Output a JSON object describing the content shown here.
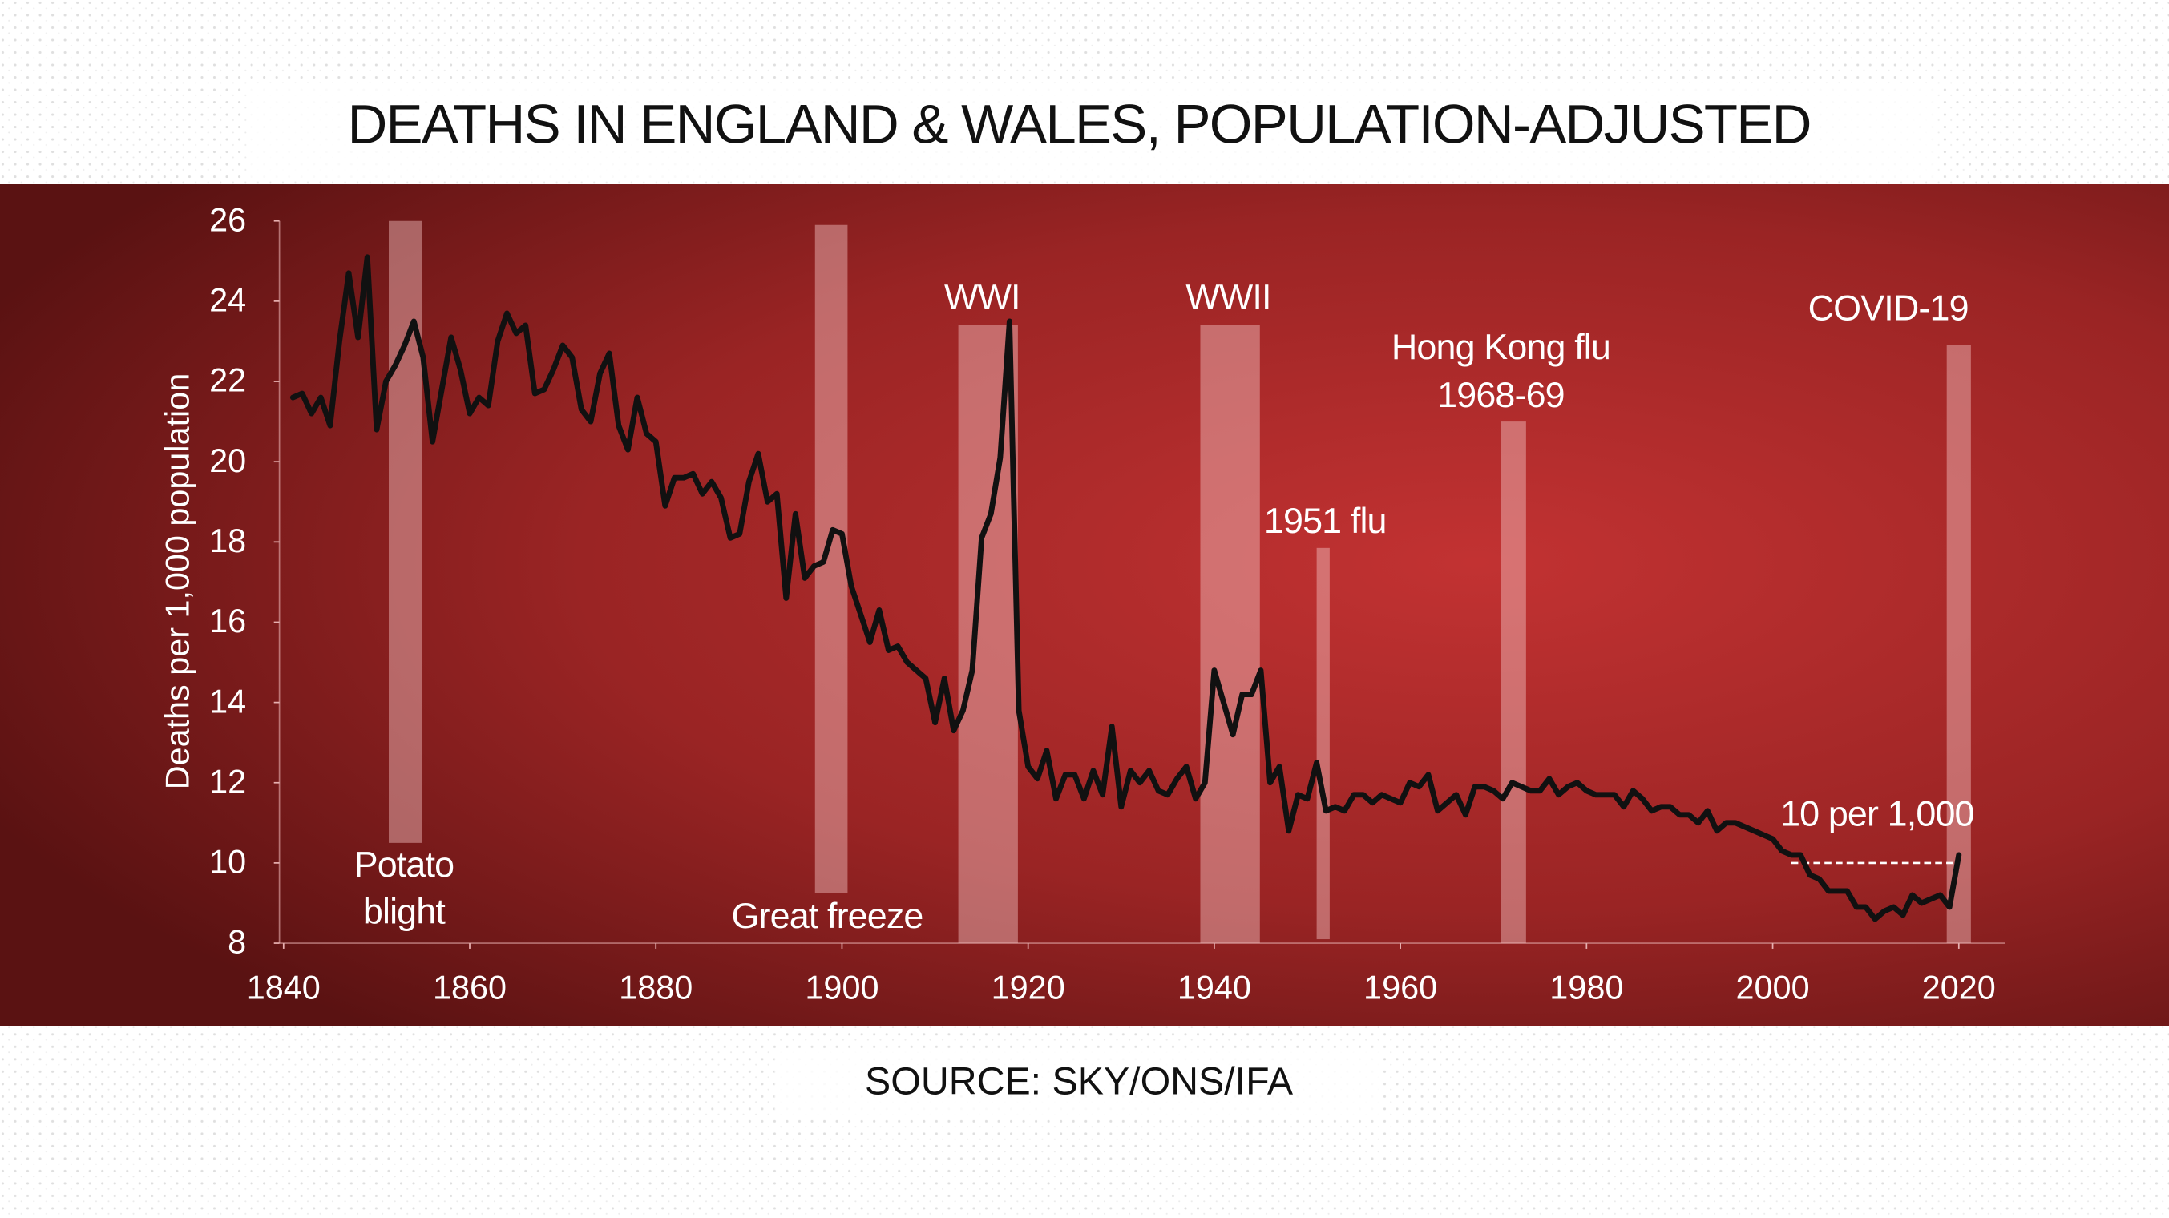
{
  "chart_data": {
    "type": "line",
    "title": "DEATHS IN ENGLAND & WALES, POPULATION-ADJUSTED",
    "source": "SOURCE: SKY/ONS/IFA",
    "y_label": "Deaths per 1,000 population",
    "color": "#111111",
    "xlim": [
      1840,
      2025
    ],
    "ylim": [
      8,
      26
    ],
    "xticks": [
      1840,
      1860,
      1880,
      1900,
      1920,
      1940,
      1960,
      1980,
      2000,
      2020
    ],
    "yticks": [
      8,
      10,
      12,
      14,
      16,
      18,
      20,
      22,
      24,
      26
    ],
    "x": [
      1841,
      1842,
      1843,
      1844,
      1845,
      1846,
      1847,
      1848,
      1849,
      1850,
      1851,
      1852,
      1853,
      1854,
      1855,
      1856,
      1857,
      1858,
      1859,
      1860,
      1861,
      1862,
      1863,
      1864,
      1865,
      1866,
      1867,
      1868,
      1869,
      1870,
      1871,
      1872,
      1873,
      1874,
      1875,
      1876,
      1877,
      1878,
      1879,
      1880,
      1881,
      1882,
      1883,
      1884,
      1885,
      1886,
      1887,
      1888,
      1889,
      1890,
      1891,
      1892,
      1893,
      1894,
      1895,
      1896,
      1897,
      1898,
      1899,
      1900,
      1901,
      1902,
      1903,
      1904,
      1905,
      1906,
      1907,
      1908,
      1909,
      1910,
      1911,
      1912,
      1913,
      1914,
      1915,
      1916,
      1917,
      1918,
      1919,
      1920,
      1921,
      1922,
      1923,
      1924,
      1925,
      1926,
      1927,
      1928,
      1929,
      1930,
      1931,
      1932,
      1933,
      1934,
      1935,
      1936,
      1937,
      1938,
      1939,
      1940,
      1941,
      1942,
      1943,
      1944,
      1945,
      1946,
      1947,
      1948,
      1949,
      1950,
      1951,
      1952,
      1953,
      1954,
      1955,
      1956,
      1957,
      1958,
      1959,
      1960,
      1961,
      1962,
      1963,
      1964,
      1965,
      1966,
      1967,
      1968,
      1969,
      1970,
      1971,
      1972,
      1973,
      1974,
      1975,
      1976,
      1977,
      1978,
      1979,
      1980,
      1981,
      1982,
      1983,
      1984,
      1985,
      1986,
      1987,
      1988,
      1989,
      1990,
      1991,
      1992,
      1993,
      1994,
      1995,
      1996,
      1997,
      1998,
      1999,
      2000,
      2001,
      2002,
      2003,
      2004,
      2005,
      2006,
      2007,
      2008,
      2009,
      2010,
      2011,
      2012,
      2013,
      2014,
      2015,
      2016,
      2017,
      2018,
      2019,
      2020
    ],
    "values": [
      21.6,
      21.7,
      21.2,
      21.6,
      20.9,
      23.0,
      24.7,
      23.1,
      25.1,
      20.8,
      22.0,
      22.4,
      22.9,
      23.5,
      22.6,
      20.5,
      21.8,
      23.1,
      22.3,
      21.2,
      21.6,
      21.4,
      23.0,
      23.7,
      23.2,
      23.4,
      21.7,
      21.8,
      22.3,
      22.9,
      22.6,
      21.3,
      21.0,
      22.2,
      22.7,
      20.9,
      20.3,
      21.6,
      20.7,
      20.5,
      18.9,
      19.6,
      19.6,
      19.7,
      19.2,
      19.5,
      19.1,
      18.1,
      18.2,
      19.5,
      20.2,
      19.0,
      19.2,
      16.6,
      18.7,
      17.1,
      17.4,
      17.5,
      18.3,
      18.2,
      16.9,
      16.2,
      15.5,
      16.3,
      15.3,
      15.4,
      15.0,
      14.8,
      14.6,
      13.5,
      14.6,
      13.3,
      13.8,
      14.8,
      18.1,
      18.7,
      20.1,
      23.5,
      13.8,
      12.4,
      12.1,
      12.8,
      11.6,
      12.2,
      12.2,
      11.6,
      12.3,
      11.7,
      13.4,
      11.4,
      12.3,
      12.0,
      12.3,
      11.8,
      11.7,
      12.1,
      12.4,
      11.6,
      12.0,
      14.8,
      14.0,
      13.2,
      14.2,
      14.2,
      14.8,
      12.0,
      12.4,
      10.8,
      11.7,
      11.6,
      12.5,
      11.3,
      11.4,
      11.3,
      11.7,
      11.7,
      11.5,
      11.7,
      11.6,
      11.5,
      12.0,
      11.9,
      12.2,
      11.3,
      11.5,
      11.7,
      11.2,
      11.9,
      11.9,
      11.8,
      11.6,
      12.0,
      11.9,
      11.8,
      11.8,
      12.1,
      11.7,
      11.9,
      12.0,
      11.8,
      11.7,
      11.7,
      11.7,
      11.4,
      11.8,
      11.6,
      11.3,
      11.4,
      11.4,
      11.2,
      11.2,
      11.0,
      11.3,
      10.8,
      11.0,
      11.0,
      10.9,
      10.8,
      10.7,
      10.6,
      10.3,
      10.2,
      10.2,
      9.7,
      9.6,
      9.3,
      9.3,
      9.3,
      8.9,
      8.9,
      8.6,
      8.8,
      8.9,
      8.7,
      9.2,
      9.0,
      9.1,
      9.2,
      8.9,
      10.2
    ],
    "annotations": [
      {
        "lines": [
          "Potato",
          "blight"
        ],
        "x": [
          1851.3,
          1854.9
        ],
        "y": [
          10.5,
          26
        ]
      },
      {
        "lines": [
          "Great freeze"
        ],
        "x": [
          1897.1,
          1900.6
        ],
        "y": [
          9.25,
          25.9
        ]
      },
      {
        "lines": [
          "WWI"
        ],
        "x": [
          1912.5,
          1918.9
        ],
        "y": [
          8,
          23.4
        ]
      },
      {
        "lines": [
          "WWII"
        ],
        "x": [
          1938.5,
          1944.9
        ],
        "y": [
          8,
          23.4
        ]
      },
      {
        "lines": [
          "1951 flu"
        ],
        "x": [
          1951.0,
          1952.4
        ],
        "y": [
          8.1,
          17.85
        ]
      },
      {
        "lines": [
          "Hong Kong flu",
          "1968-69"
        ],
        "x": [
          1970.8,
          1973.5
        ],
        "y": [
          8,
          21.0
        ]
      },
      {
        "lines": [
          "COVID-19"
        ],
        "x": [
          2018.7,
          2021.3
        ],
        "y": [
          8,
          22.9
        ]
      }
    ],
    "reference_line": {
      "value": 10,
      "label": "10 per 1,000",
      "x": [
        2002,
        2020
      ]
    }
  }
}
